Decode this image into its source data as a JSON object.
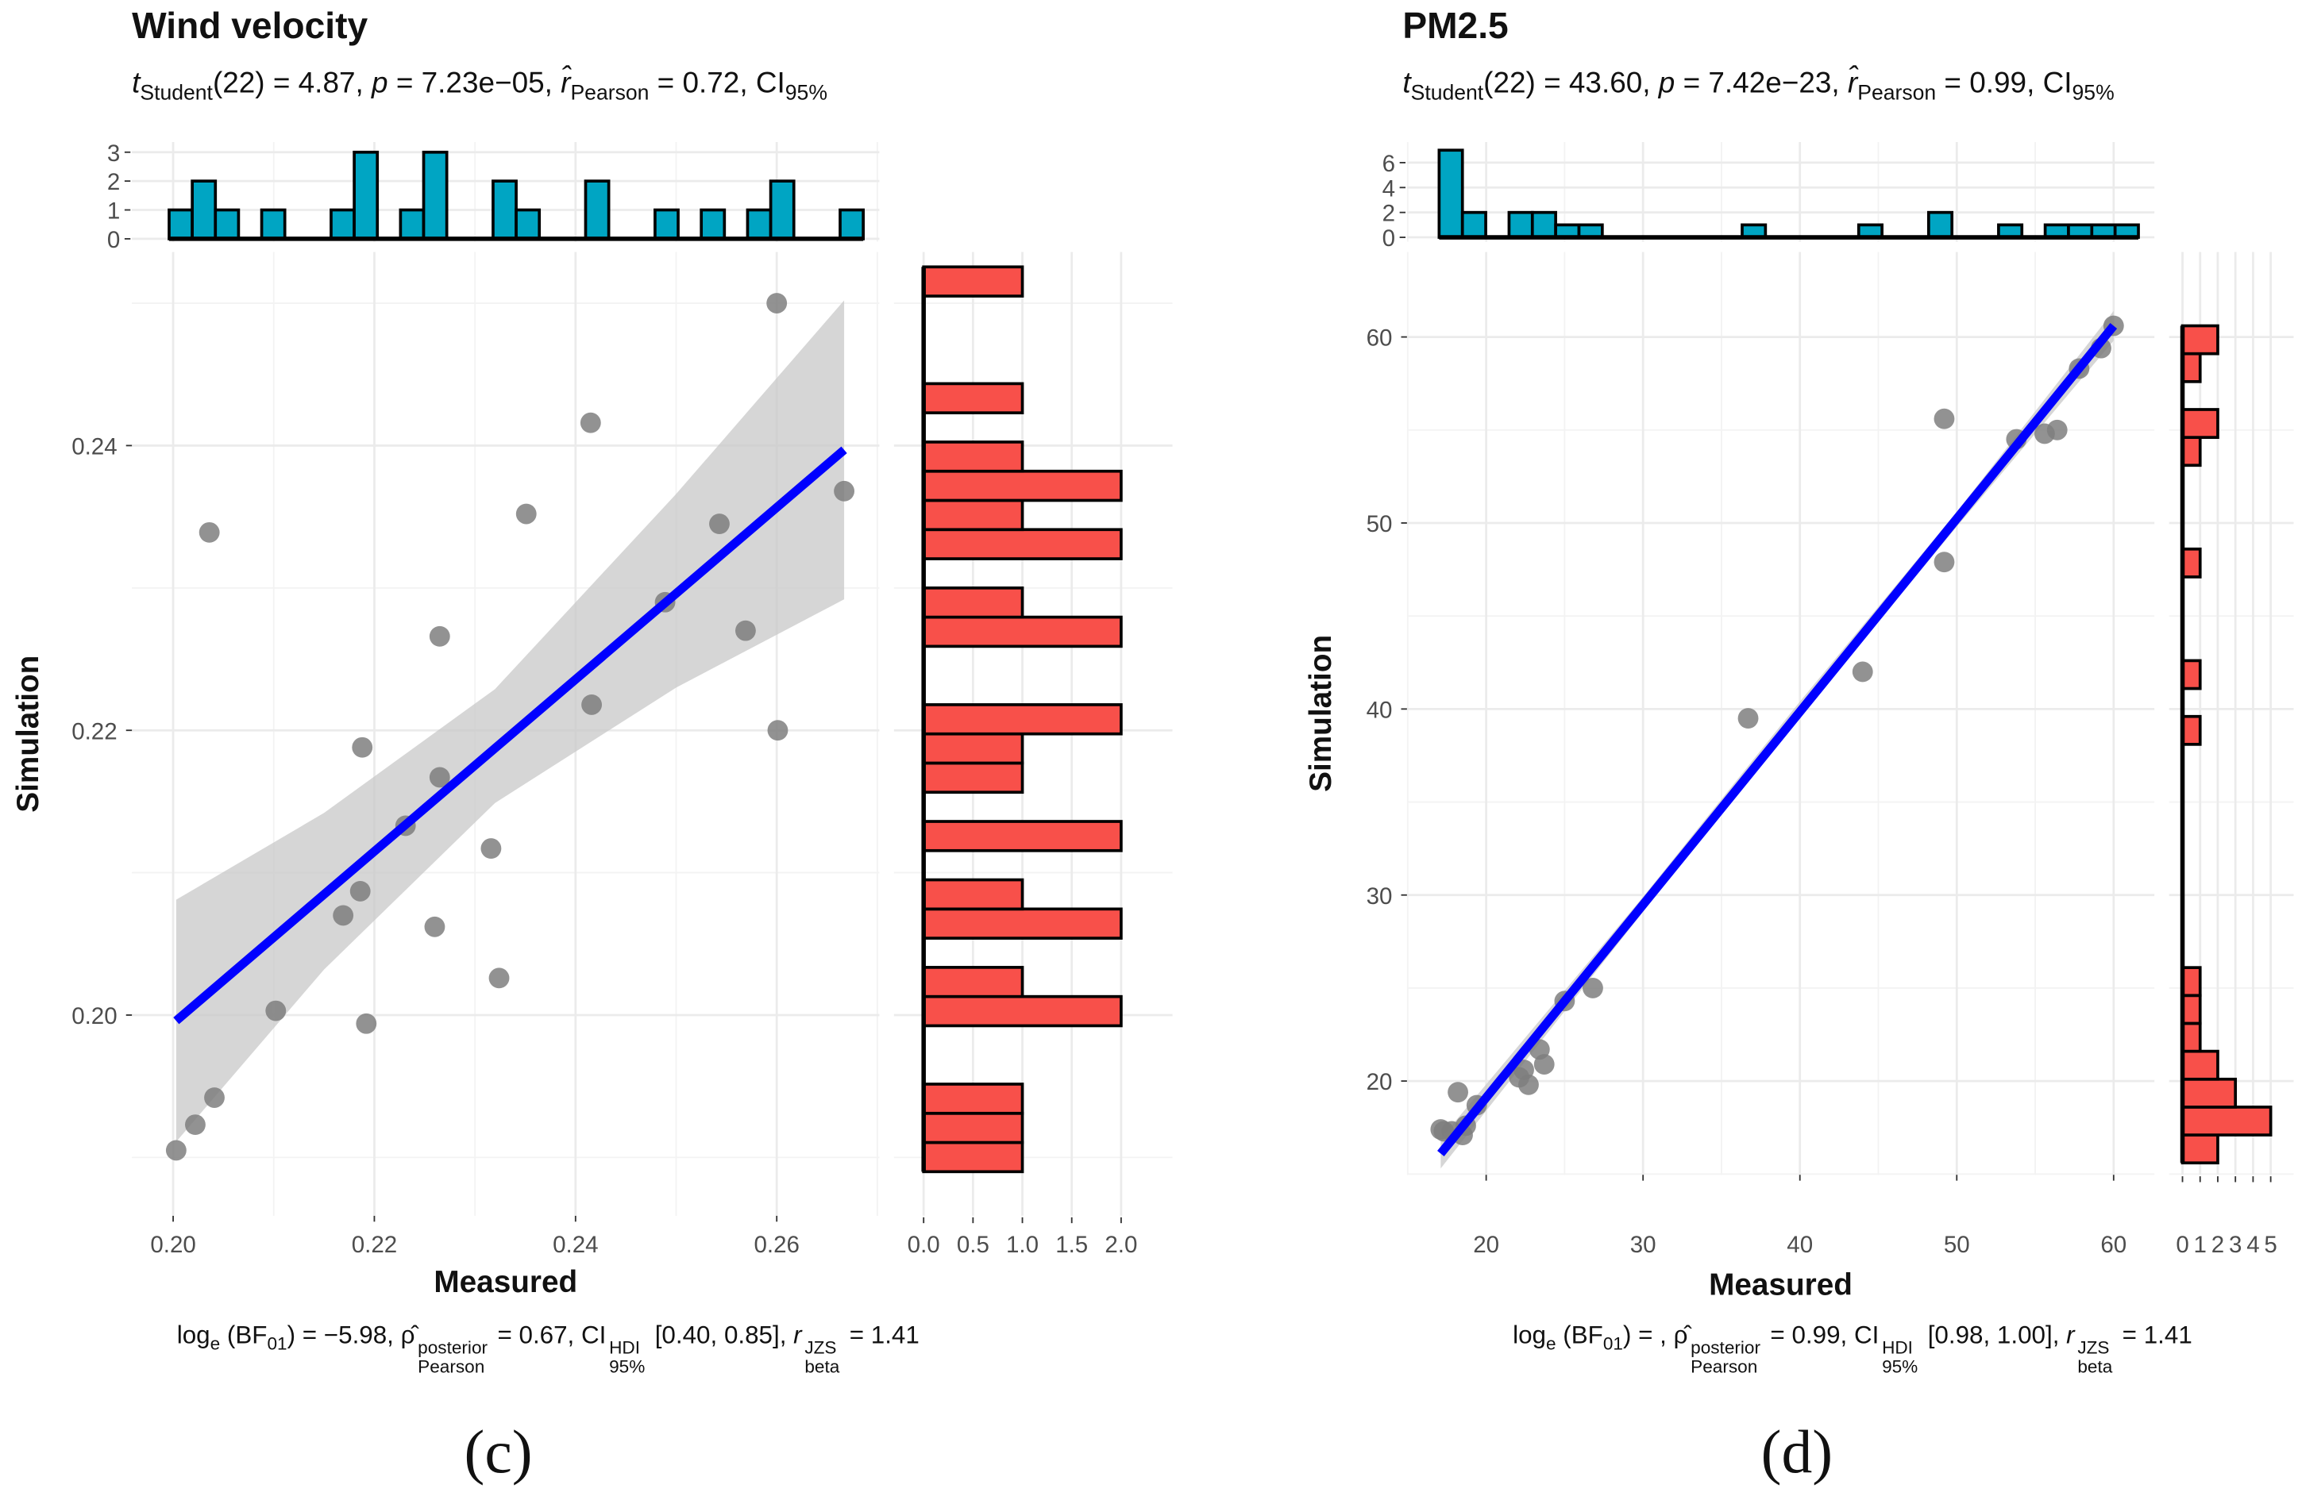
{
  "chart_data": [
    {
      "type": "scatter",
      "title": "Wind velocity",
      "panel_label": "(c)",
      "xlabel": "Measured",
      "ylabel": "Simulation",
      "subtitle_segments": [
        {
          "t": "t",
          "k": "i"
        },
        {
          "t": "Student",
          "k": "sub"
        },
        {
          "t": "(22) = 4.87, ",
          "k": "n"
        },
        {
          "t": "p",
          "k": "i"
        },
        {
          "t": " = 7.23e−05, ",
          "k": "n"
        },
        {
          "t": "r̂",
          "k": "i"
        },
        {
          "t": "Pearson",
          "k": "sub"
        },
        {
          "t": " = 0.72, CI",
          "k": "n"
        },
        {
          "t": "95%",
          "k": "sub"
        }
      ],
      "caption_segments": [
        {
          "t": "log",
          "k": "n"
        },
        {
          "t": "e",
          "k": "sub"
        },
        {
          "t": " (BF",
          "k": "n"
        },
        {
          "t": "01",
          "k": "sub"
        },
        {
          "t": ") = −5.98, ",
          "k": "n"
        },
        {
          "t": "ρ̂",
          "k": "n"
        },
        {
          "sup": "posterior",
          "sub": "Pearson",
          "k": "ss"
        },
        {
          "t": " = 0.67, CI",
          "k": "n"
        },
        {
          "sup": "HDI",
          "sub": "95%",
          "k": "ss"
        },
        {
          "t": " [0.40, 0.85], ",
          "k": "n"
        },
        {
          "t": "r",
          "k": "i"
        },
        {
          "sup": "JZS",
          "sub": "beta",
          "k": "ss"
        },
        {
          "t": " = 1.41",
          "k": "n"
        }
      ],
      "xlim": [
        0.1959,
        0.2702
      ],
      "ylim": [
        0.1859,
        0.2536
      ],
      "xticks": [
        0.2,
        0.22,
        0.24,
        0.26
      ],
      "xtick_labels": [
        "0.20",
        "0.22",
        "0.24",
        "0.26"
      ],
      "yticks": [
        0.2,
        0.22,
        0.24
      ],
      "ytick_labels": [
        "0.20",
        "0.22",
        "0.24"
      ],
      "points": {
        "x": [
          0.2003,
          0.2022,
          0.2041,
          0.2036,
          0.2102,
          0.2192,
          0.2169,
          0.2186,
          0.2188,
          0.2231,
          0.226,
          0.2265,
          0.2265,
          0.2316,
          0.2324,
          0.2351,
          0.2415,
          0.2416,
          0.2489,
          0.2543,
          0.2569,
          0.26,
          0.2601,
          0.2667
        ],
        "y": [
          0.1905,
          0.1923,
          0.1942,
          0.2339,
          0.2003,
          0.1994,
          0.207,
          0.2087,
          0.2188,
          0.2133,
          0.2062,
          0.2266,
          0.2167,
          0.2117,
          0.2026,
          0.2352,
          0.2416,
          0.2218,
          0.229,
          0.2345,
          0.227,
          0.25,
          0.22,
          0.2368
        ]
      },
      "fit_line": {
        "x": [
          0.2003,
          0.2667
        ],
        "y": [
          0.1996,
          0.2397
        ]
      },
      "ci_band": {
        "x": [
          0.2003,
          0.215,
          0.232,
          0.25,
          0.2667
        ],
        "lo": [
          0.1911,
          0.2032,
          0.2149,
          0.223,
          0.2292
        ],
        "hi": [
          0.2081,
          0.2142,
          0.2229,
          0.2366,
          0.2502
        ]
      },
      "top_histogram": {
        "bin_start": 0.1996,
        "bin_width": 0.0023,
        "counts": [
          1,
          2,
          1,
          0,
          1,
          0,
          0,
          1,
          3,
          0,
          1,
          3,
          0,
          0,
          2,
          1,
          0,
          0,
          2,
          0,
          0,
          1,
          0,
          1,
          0,
          1,
          2,
          0,
          0,
          1
        ],
        "ylim": [
          -0.1,
          3.35
        ],
        "ticks": [
          0,
          1,
          2,
          3
        ],
        "tick_labels": [
          "0",
          "1",
          "2",
          "3"
        ]
      },
      "right_histogram": {
        "bin_start": 0.189,
        "bin_width": 0.00205,
        "counts_bottom_to_top": [
          1,
          1,
          1,
          0,
          0,
          2,
          1,
          0,
          2,
          1,
          0,
          2,
          0,
          1,
          1,
          2,
          0,
          0,
          2,
          1,
          0,
          2,
          1,
          2,
          1,
          0,
          1,
          0,
          0,
          0,
          1
        ],
        "xlim": [
          -0.3,
          2.52
        ],
        "ticks": [
          0,
          0.5,
          1,
          1.5,
          2
        ],
        "tick_labels": [
          "0.0",
          "0.5",
          "1.0",
          "1.5",
          "2.0"
        ]
      }
    },
    {
      "type": "scatter",
      "title": "PM2.5",
      "panel_label": "(d)",
      "xlabel": "Measured",
      "ylabel": "Simulation",
      "subtitle_segments": [
        {
          "t": "t",
          "k": "i"
        },
        {
          "t": "Student",
          "k": "sub"
        },
        {
          "t": "(22) = 43.60, ",
          "k": "n"
        },
        {
          "t": "p",
          "k": "i"
        },
        {
          "t": " = 7.42e−23, ",
          "k": "n"
        },
        {
          "t": "r̂",
          "k": "i"
        },
        {
          "t": "Pearson",
          "k": "sub"
        },
        {
          "t": " = 0.99, CI",
          "k": "n"
        },
        {
          "t": "95%",
          "k": "sub"
        }
      ],
      "caption_segments": [
        {
          "t": "log",
          "k": "n"
        },
        {
          "t": "e",
          "k": "sub"
        },
        {
          "t": " (BF",
          "k": "n"
        },
        {
          "t": "01",
          "k": "sub"
        },
        {
          "t": ") = , ",
          "k": "n"
        },
        {
          "t": "ρ̂",
          "k": "n"
        },
        {
          "sup": "posterior",
          "sub": "Pearson",
          "k": "ss"
        },
        {
          "t": " = 0.99, CI",
          "k": "n"
        },
        {
          "sup": "HDI",
          "sub": "95%",
          "k": "ss"
        },
        {
          "t": " [0.98, 1.00], ",
          "k": "n"
        },
        {
          "t": "r",
          "k": "i"
        },
        {
          "sup": "JZS",
          "sub": "beta",
          "k": "ss"
        },
        {
          "t": " = 1.41",
          "k": "n"
        }
      ],
      "xlim": [
        14.95,
        62.6
      ],
      "ylim": [
        14.96,
        64.57
      ],
      "xticks": [
        20,
        30,
        40,
        50,
        60
      ],
      "xtick_labels": [
        "20",
        "30",
        "40",
        "50",
        "60"
      ],
      "yticks": [
        20,
        30,
        40,
        50,
        60
      ],
      "ytick_labels": [
        "20",
        "30",
        "40",
        "50",
        "60"
      ],
      "points": {
        "x": [
          17.1,
          17.3,
          17.8,
          18.5,
          18.7,
          18.2,
          19.4,
          22.1,
          22.4,
          22.7,
          23.4,
          23.7,
          25.0,
          26.8,
          36.7,
          44.0,
          49.2,
          49.2,
          53.8,
          55.6,
          56.4,
          57.8,
          59.2,
          60.0
        ],
        "y": [
          17.4,
          17.3,
          17.3,
          17.1,
          17.6,
          19.4,
          18.7,
          20.2,
          20.6,
          19.8,
          21.7,
          20.9,
          24.3,
          25.0,
          39.5,
          42.0,
          55.6,
          47.9,
          54.5,
          54.8,
          55.0,
          58.3,
          59.4,
          60.6
        ]
      },
      "fit_line": {
        "x": [
          17.1,
          60.0
        ],
        "y": [
          16.1,
          60.6
        ]
      },
      "ci_band": {
        "x": [
          17.1,
          30,
          40,
          50,
          60
        ],
        "lo": [
          15.3,
          29.1,
          39.6,
          49.8,
          59.8
        ],
        "hi": [
          16.9,
          29.9,
          40.4,
          50.6,
          61.4
        ]
      },
      "top_histogram": {
        "bin_start": 17.0,
        "bin_width": 1.486,
        "counts": [
          7,
          2,
          0,
          2,
          2,
          1,
          1,
          0,
          0,
          0,
          0,
          0,
          0,
          1,
          0,
          0,
          0,
          0,
          1,
          0,
          0,
          2,
          0,
          0,
          1,
          0,
          1,
          1,
          1,
          1
        ],
        "ylim": [
          -0.35,
          7.65
        ],
        "ticks": [
          0,
          2,
          4,
          6
        ],
        "tick_labels": [
          "0",
          "2",
          "4",
          "6"
        ]
      },
      "right_histogram": {
        "bin_start": 15.6,
        "bin_width": 1.5,
        "counts_bottom_to_top": [
          2,
          5,
          3,
          2,
          1,
          1,
          1,
          0,
          0,
          0,
          0,
          0,
          0,
          0,
          0,
          1,
          0,
          1,
          0,
          0,
          0,
          1,
          0,
          0,
          0,
          1,
          2,
          0,
          1,
          2
        ],
        "xlim": [
          -0.76,
          6.3
        ],
        "ticks": [
          0,
          1,
          2,
          3,
          4,
          5
        ],
        "tick_labels": [
          "0",
          "1",
          "2",
          "3",
          "4",
          "5"
        ]
      }
    }
  ],
  "colors": {
    "top_hist_fill": "#00a5c3",
    "right_hist_fill": "#f8504a",
    "fit_line": "#0000ff",
    "ci_band": "#c8c8c8",
    "points": "#7f7f7f",
    "grid": "#ebebeb"
  }
}
